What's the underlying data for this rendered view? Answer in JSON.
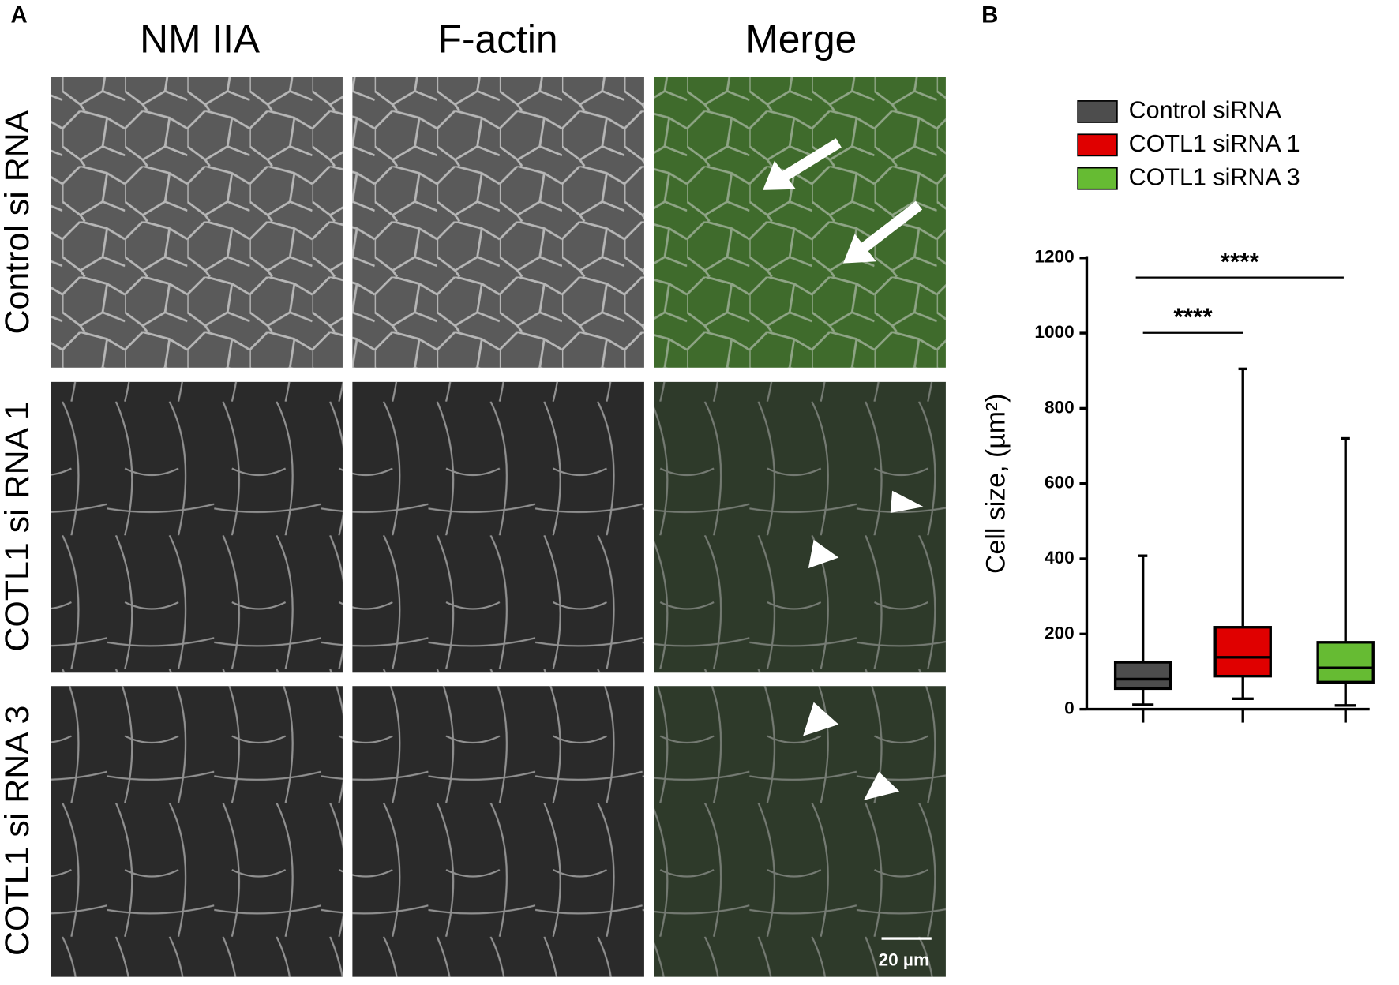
{
  "figure": {
    "panel_a": {
      "label": "A",
      "columns": [
        "NM IIA",
        "F-actin",
        "Merge"
      ],
      "rows": [
        "Control si RNA",
        "COTL1 si RNA 1",
        "COTL1 si RNA 3"
      ],
      "scale_bar": "20 µm"
    }
  },
  "chart_data": {
    "type": "box",
    "panel_label": "B",
    "y_label": "Cell size, (µm²)",
    "ylim": [
      0,
      1200
    ],
    "yticks": [
      0,
      200,
      400,
      600,
      800,
      1000,
      1200
    ],
    "series": [
      {
        "name": "Control siRNA",
        "color": "#4d4d4d",
        "min": 12,
        "q1": 55,
        "median": 80,
        "q3": 125,
        "max": 408
      },
      {
        "name": "COTL1 siRNA 1",
        "color": "#e00000",
        "min": 28,
        "q1": 88,
        "median": 138,
        "q3": 218,
        "max": 905
      },
      {
        "name": "COTL1 siRNA 3",
        "color": "#66bb33",
        "min": 10,
        "q1": 72,
        "median": 110,
        "q3": 178,
        "max": 720
      }
    ],
    "annotations": [
      "****",
      "****"
    ]
  }
}
